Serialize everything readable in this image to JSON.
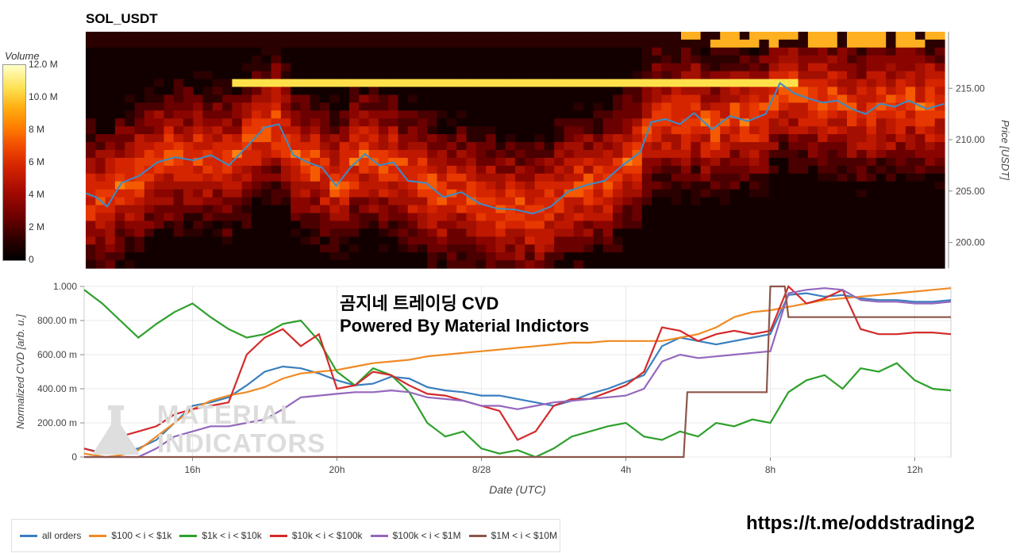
{
  "header": {
    "title": "SOL_USDT"
  },
  "colorbar": {
    "title": "Volume",
    "ticks": [
      {
        "label": "12.0 M",
        "value": 12
      },
      {
        "label": "10.0 M",
        "value": 10
      },
      {
        "label": "8 M",
        "value": 8
      },
      {
        "label": "6 M",
        "value": 6
      },
      {
        "label": "4 M",
        "value": 4
      },
      {
        "label": "2 M",
        "value": 2
      },
      {
        "label": "0",
        "value": 0
      }
    ]
  },
  "watermark": {
    "line1": "곰지네 트레이딩 CVD",
    "line2": "Powered By Material Indictors",
    "logo_line1": "MATERIAL",
    "logo_line2": "INDICATORS"
  },
  "footer": {
    "url": "https://t.me/oddstrading2"
  },
  "colors": {
    "all_orders": "#3a7fbf",
    "s100_1k": "#f08a24",
    "s1k_10k": "#2ea02c",
    "s10k_100k": "#d42a2a",
    "s100k_1m": "#9467bd",
    "s1m_10m": "#8c564b",
    "price_line": "#3b8cc8"
  },
  "chart_data": [
    {
      "type": "heatmap",
      "title": "SOL_USDT",
      "ylabel": "Price [USDT]",
      "ylim": [
        197.5,
        220.5
      ],
      "yticks": [
        {
          "label": "200.00",
          "value": 200
        },
        {
          "label": "205.00",
          "value": 205
        },
        {
          "label": "210.00",
          "value": 210
        },
        {
          "label": "215.00",
          "value": 215
        }
      ],
      "xlim": [
        13.0,
        37.0
      ],
      "colorbar_label": "Volume",
      "colorbar_range_m": [
        0,
        12
      ],
      "price_series": {
        "name": "Price",
        "x": [
          13.0,
          13.3,
          13.6,
          14.0,
          14.5,
          15.0,
          15.5,
          16.0,
          16.5,
          17.0,
          17.5,
          18.0,
          18.4,
          18.8,
          19.2,
          19.6,
          20.0,
          20.4,
          20.8,
          21.2,
          21.6,
          22.0,
          22.5,
          23.0,
          23.5,
          24.0,
          24.5,
          25.0,
          25.5,
          26.0,
          26.5,
          27.0,
          27.5,
          28.0,
          28.5,
          28.8,
          29.2,
          29.6,
          30.0,
          30.5,
          31.0,
          31.5,
          32.0,
          32.4,
          32.8,
          33.2,
          33.6,
          34.0,
          34.4,
          34.8,
          35.2,
          35.6,
          36.0,
          36.5,
          37.0
        ],
        "y": [
          204.8,
          204.4,
          203.5,
          205.8,
          206.5,
          207.8,
          208.3,
          208.0,
          208.5,
          207.5,
          209.3,
          211.2,
          211.5,
          208.5,
          207.8,
          207.3,
          205.5,
          207.3,
          208.6,
          207.5,
          207.8,
          206.0,
          205.8,
          204.4,
          204.9,
          203.8,
          203.3,
          203.2,
          202.8,
          203.5,
          205.0,
          205.6,
          206.0,
          207.5,
          208.8,
          211.7,
          212.0,
          211.5,
          212.6,
          211.0,
          212.3,
          211.8,
          212.5,
          215.5,
          214.5,
          214.0,
          213.6,
          213.8,
          213.0,
          212.5,
          213.5,
          213.2,
          213.8,
          213.0,
          213.5
        ]
      },
      "bands": [
        {
          "price": 215.5,
          "color": "#ffe84a"
        },
        {
          "price": 213.5,
          "color": "#e63800"
        },
        {
          "price": 210.0,
          "color": "#ff8c1a"
        },
        {
          "price": 207.8,
          "color": "#e03010"
        },
        {
          "price": 204.8,
          "color": "#ff6a10"
        }
      ]
    },
    {
      "type": "line",
      "xlabel": "Date (UTC)",
      "ylabel": "Normalized CVD [arb. u.]",
      "xlim": [
        13.0,
        37.0
      ],
      "ylim": [
        0,
        1.0
      ],
      "xticks": [
        {
          "label": "16h",
          "value": 16
        },
        {
          "label": "20h",
          "value": 20
        },
        {
          "label": "8/28",
          "value": 24
        },
        {
          "label": "4h",
          "value": 28
        },
        {
          "label": "8h",
          "value": 32
        },
        {
          "label": "12h",
          "value": 36
        }
      ],
      "yticks": [
        {
          "label": "0",
          "value": 0
        },
        {
          "label": "200.00 m",
          "value": 0.2
        },
        {
          "label": "400.00 m",
          "value": 0.4
        },
        {
          "label": "600.00 m",
          "value": 0.6
        },
        {
          "label": "800.00 m",
          "value": 0.8
        },
        {
          "label": "1.000",
          "value": 1.0
        }
      ],
      "series": [
        {
          "name": "all orders",
          "color": "#3a7fbf",
          "x": [
            13.0,
            13.6,
            14.0,
            14.5,
            15.0,
            15.5,
            16.0,
            16.5,
            17.0,
            17.5,
            18.0,
            18.5,
            19.0,
            19.5,
            20.0,
            20.5,
            21.0,
            21.5,
            22.0,
            22.5,
            23.0,
            23.5,
            24.0,
            24.5,
            25.0,
            25.5,
            26.0,
            26.5,
            27.0,
            27.5,
            28.0,
            28.5,
            29.0,
            29.5,
            30.0,
            30.5,
            31.0,
            31.5,
            32.0,
            32.5,
            33.0,
            33.5,
            34.0,
            34.5,
            35.0,
            35.5,
            36.0,
            36.5,
            37.0
          ],
          "y": [
            0.05,
            0.02,
            0.04,
            0.05,
            0.1,
            0.2,
            0.3,
            0.32,
            0.35,
            0.42,
            0.5,
            0.53,
            0.52,
            0.49,
            0.45,
            0.42,
            0.43,
            0.47,
            0.46,
            0.41,
            0.39,
            0.38,
            0.36,
            0.36,
            0.34,
            0.32,
            0.3,
            0.33,
            0.37,
            0.4,
            0.44,
            0.48,
            0.65,
            0.7,
            0.68,
            0.66,
            0.68,
            0.7,
            0.72,
            0.95,
            0.96,
            0.94,
            0.95,
            0.93,
            0.92,
            0.92,
            0.91,
            0.91,
            0.92
          ]
        },
        {
          "name": "$100 < i < $1k",
          "color": "#f08a24",
          "x": [
            13.0,
            13.6,
            14.0,
            14.5,
            15.0,
            15.5,
            16.0,
            16.5,
            17.0,
            17.5,
            18.0,
            18.5,
            19.0,
            19.5,
            20.0,
            20.5,
            21.0,
            21.5,
            22.0,
            22.5,
            23.0,
            23.5,
            24.0,
            24.5,
            25.0,
            25.5,
            26.0,
            26.5,
            27.0,
            27.5,
            28.0,
            28.5,
            29.0,
            29.5,
            30.0,
            30.5,
            31.0,
            31.5,
            32.0,
            32.5,
            33.0,
            33.5,
            34.0,
            34.5,
            35.0,
            35.5,
            36.0,
            36.5,
            37.0
          ],
          "y": [
            0.02,
            0.0,
            0.01,
            0.04,
            0.12,
            0.2,
            0.28,
            0.33,
            0.36,
            0.38,
            0.41,
            0.46,
            0.49,
            0.5,
            0.51,
            0.53,
            0.55,
            0.56,
            0.57,
            0.59,
            0.6,
            0.61,
            0.62,
            0.63,
            0.64,
            0.65,
            0.66,
            0.67,
            0.67,
            0.68,
            0.68,
            0.68,
            0.68,
            0.7,
            0.72,
            0.76,
            0.82,
            0.85,
            0.86,
            0.88,
            0.9,
            0.92,
            0.93,
            0.94,
            0.95,
            0.96,
            0.97,
            0.98,
            0.99
          ]
        },
        {
          "name": "$1k < i < $10k",
          "color": "#2ea02c",
          "x": [
            13.0,
            13.5,
            14.0,
            14.5,
            15.0,
            15.5,
            16.0,
            16.5,
            17.0,
            17.5,
            18.0,
            18.5,
            19.0,
            19.5,
            20.0,
            20.5,
            21.0,
            21.5,
            22.0,
            22.5,
            23.0,
            23.5,
            24.0,
            24.5,
            25.0,
            25.5,
            26.0,
            26.5,
            27.0,
            27.5,
            28.0,
            28.5,
            29.0,
            29.5,
            30.0,
            30.5,
            31.0,
            31.5,
            32.0,
            32.5,
            33.0,
            33.5,
            34.0,
            34.5,
            35.0,
            35.5,
            36.0,
            36.5,
            37.0
          ],
          "y": [
            0.98,
            0.9,
            0.8,
            0.7,
            0.78,
            0.85,
            0.9,
            0.82,
            0.75,
            0.7,
            0.72,
            0.78,
            0.8,
            0.68,
            0.5,
            0.42,
            0.52,
            0.48,
            0.38,
            0.2,
            0.12,
            0.15,
            0.05,
            0.02,
            0.04,
            0.0,
            0.05,
            0.12,
            0.15,
            0.18,
            0.2,
            0.12,
            0.1,
            0.15,
            0.12,
            0.2,
            0.18,
            0.22,
            0.2,
            0.38,
            0.45,
            0.48,
            0.4,
            0.52,
            0.5,
            0.55,
            0.45,
            0.4,
            0.39
          ]
        },
        {
          "name": "$10k < i < $100k",
          "color": "#d42a2a",
          "x": [
            13.0,
            13.5,
            14.0,
            14.5,
            15.0,
            15.5,
            16.0,
            16.5,
            17.0,
            17.5,
            18.0,
            18.5,
            19.0,
            19.5,
            20.0,
            20.5,
            21.0,
            21.5,
            22.0,
            22.5,
            23.0,
            23.5,
            24.0,
            24.5,
            25.0,
            25.5,
            26.0,
            26.5,
            27.0,
            27.5,
            28.0,
            28.5,
            29.0,
            29.5,
            30.0,
            30.5,
            31.0,
            31.5,
            32.0,
            32.5,
            33.0,
            33.5,
            34.0,
            34.5,
            35.0,
            35.5,
            36.0,
            36.5,
            37.0
          ],
          "y": [
            0.05,
            0.02,
            0.12,
            0.15,
            0.18,
            0.25,
            0.28,
            0.3,
            0.32,
            0.6,
            0.7,
            0.75,
            0.65,
            0.72,
            0.4,
            0.42,
            0.5,
            0.48,
            0.42,
            0.37,
            0.36,
            0.33,
            0.3,
            0.27,
            0.1,
            0.15,
            0.3,
            0.34,
            0.34,
            0.38,
            0.42,
            0.5,
            0.76,
            0.74,
            0.68,
            0.72,
            0.74,
            0.72,
            0.74,
            1.0,
            0.9,
            0.93,
            0.98,
            0.75,
            0.72,
            0.72,
            0.73,
            0.73,
            0.72
          ]
        },
        {
          "name": "$100k < i < $1M",
          "color": "#9467bd",
          "x": [
            13.0,
            13.5,
            14.0,
            14.5,
            15.0,
            15.5,
            16.0,
            16.5,
            17.0,
            17.5,
            18.0,
            18.5,
            19.0,
            19.5,
            20.0,
            20.5,
            21.0,
            21.5,
            22.0,
            22.5,
            23.0,
            23.5,
            24.0,
            24.5,
            25.0,
            25.5,
            26.0,
            26.5,
            27.0,
            27.5,
            28.0,
            28.5,
            29.0,
            29.5,
            30.0,
            30.5,
            31.0,
            31.5,
            32.0,
            32.5,
            33.0,
            33.5,
            34.0,
            34.5,
            35.0,
            35.5,
            36.0,
            36.5,
            37.0
          ],
          "y": [
            0.0,
            0.0,
            0.0,
            0.0,
            0.05,
            0.12,
            0.15,
            0.18,
            0.18,
            0.2,
            0.22,
            0.28,
            0.35,
            0.36,
            0.37,
            0.38,
            0.38,
            0.39,
            0.38,
            0.35,
            0.34,
            0.33,
            0.3,
            0.3,
            0.28,
            0.3,
            0.32,
            0.33,
            0.34,
            0.35,
            0.36,
            0.4,
            0.56,
            0.6,
            0.58,
            0.59,
            0.6,
            0.61,
            0.62,
            0.96,
            0.98,
            0.99,
            0.98,
            0.92,
            0.91,
            0.91,
            0.9,
            0.9,
            0.91
          ]
        },
        {
          "name": "$1M < i < $10M",
          "color": "#8c564b",
          "x": [
            13.0,
            29.6,
            29.7,
            31.9,
            32.0,
            32.1,
            32.4,
            32.5,
            37.0
          ],
          "y": [
            0.0,
            0.0,
            0.38,
            0.38,
            1.0,
            1.0,
            1.0,
            0.82,
            0.82
          ]
        }
      ]
    }
  ]
}
